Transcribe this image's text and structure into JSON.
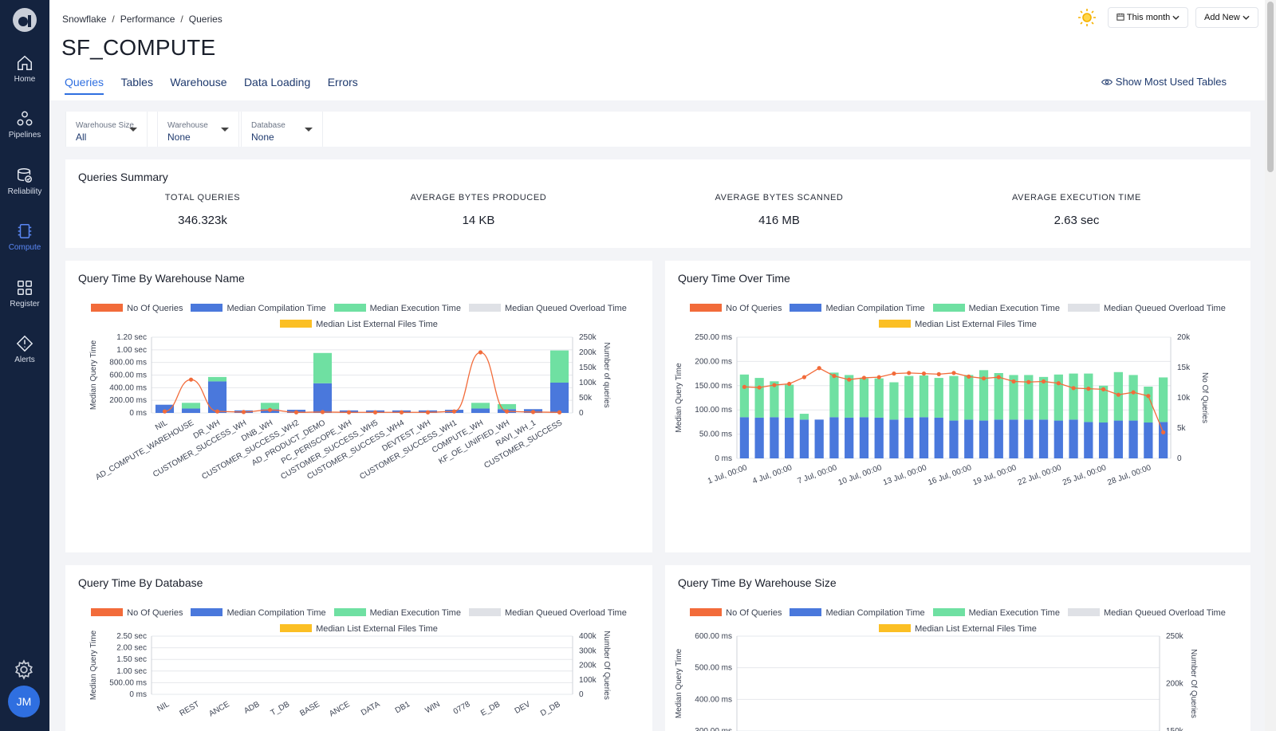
{
  "sidebar": {
    "items": [
      {
        "label": "Home",
        "icon": "home-icon"
      },
      {
        "label": "Pipelines",
        "icon": "pipelines-icon"
      },
      {
        "label": "Reliability",
        "icon": "reliability-icon"
      },
      {
        "label": "Compute",
        "icon": "compute-icon",
        "active": true
      },
      {
        "label": "Register",
        "icon": "register-icon"
      },
      {
        "label": "Alerts",
        "icon": "alerts-icon"
      }
    ],
    "avatar_initials": "JM"
  },
  "header": {
    "breadcrumb": [
      "Snowflake",
      "Performance",
      "Queries"
    ],
    "title": "SF_COMPUTE",
    "tabs": [
      "Queries",
      "Tables",
      "Warehouse",
      "Data Loading",
      "Errors"
    ],
    "active_tab": "Queries",
    "show_most_used": "Show Most Used Tables",
    "date_button": "This month",
    "add_button": "Add New"
  },
  "filters": [
    {
      "label": "Warehouse Size",
      "value": "All"
    },
    {
      "label": "Warehouse",
      "value": "None"
    },
    {
      "label": "Database",
      "value": "None"
    }
  ],
  "summary": {
    "title": "Queries Summary",
    "kpis": [
      {
        "label": "TOTAL QUERIES",
        "value": "346.323k"
      },
      {
        "label": "AVERAGE BYTES PRODUCED",
        "value": "14 KB"
      },
      {
        "label": "AVERAGE BYTES SCANNED",
        "value": "416 MB"
      },
      {
        "label": "AVERAGE EXECUTION TIME",
        "value": "2.63 sec"
      }
    ]
  },
  "colors": {
    "queries": "#f26b3a",
    "compilation": "#4a78dc",
    "execution": "#6fe0a2",
    "queued": "#dfe1e6",
    "list_external": "#fbbf24"
  },
  "legend": [
    "No Of Queries",
    "Median Compilation Time",
    "Median Execution Time",
    "Median Queued Overload Time",
    "Median List External Files Time"
  ],
  "chart_data": [
    {
      "title": "Query Time By Warehouse Name",
      "type": "bar",
      "stacked": true,
      "ylabel": "Median Query Time",
      "y2label": "Number of queries",
      "yticks": [
        "0 ms",
        "200.00 ms",
        "400.00 ms",
        "600.00 ms",
        "800.00 ms",
        "1.00 sec",
        "1.20 sec"
      ],
      "ylim": [
        0,
        1200
      ],
      "y2ticks": [
        "0",
        "50k",
        "100k",
        "150k",
        "200k",
        "250k"
      ],
      "y2lim": [
        0,
        250000
      ],
      "categories": [
        "NIL",
        "AD_COMPUTE_WAREHOUSE",
        "DR_WH",
        "CUSTOMER_SUCCESS_WH",
        "DNB_WH",
        "CUSTOMER_SUCCESS_WH2",
        "AD_PRODUCT_DEMO",
        "PC_PERISCOPE_WH",
        "CUSTOMER_SUCCESS_WH5",
        "CUSTOMER_SUCCESS_WH4",
        "DEVTEST_WH",
        "CUSTOMER_SUCCESS_WH1",
        "COMPUTE_WH",
        "KF_OE_UNIFIED_WH",
        "RAVI_WH_1",
        "CUSTOMER_SUCCESS"
      ],
      "series": [
        {
          "name": "Median Compilation Time",
          "values": [
            130,
            70,
            500,
            40,
            60,
            50,
            470,
            40,
            40,
            40,
            40,
            50,
            70,
            60,
            60,
            480
          ]
        },
        {
          "name": "Median Execution Time",
          "values": [
            0,
            90,
            70,
            0,
            100,
            0,
            480,
            0,
            0,
            0,
            0,
            0,
            90,
            80,
            0,
            510
          ]
        },
        {
          "name": "No Of Queries",
          "axis": "y2",
          "values": [
            5000,
            110000,
            5000,
            3000,
            10000,
            2000,
            3000,
            2000,
            2000,
            2000,
            2000,
            5000,
            200000,
            5000,
            3000,
            2000
          ]
        }
      ]
    },
    {
      "title": "Query Time Over Time",
      "type": "bar",
      "stacked": true,
      "ylabel": "Median Query Time",
      "y2label": "No Of Queries",
      "yticks": [
        "0 ms",
        "50.00 ms",
        "100.00 ms",
        "150.00 ms",
        "200.00 ms",
        "250.00 ms"
      ],
      "ylim": [
        0,
        250
      ],
      "y2ticks": [
        "0",
        "5k",
        "10k",
        "15k",
        "20k"
      ],
      "y2lim": [
        0,
        20000
      ],
      "xticks": [
        "1 Jul, 00:00",
        "4 Jul, 00:00",
        "7 Jul, 00:00",
        "10 Jul, 00:00",
        "13 Jul, 00:00",
        "16 Jul, 00:00",
        "19 Jul, 00:00",
        "22 Jul, 00:00",
        "25 Jul, 00:00",
        "28 Jul, 00:00"
      ],
      "x": [
        "1 Jul",
        "2 Jul",
        "3 Jul",
        "4 Jul",
        "5 Jul",
        "6 Jul",
        "7 Jul",
        "8 Jul",
        "9 Jul",
        "10 Jul",
        "11 Jul",
        "12 Jul",
        "13 Jul",
        "14 Jul",
        "15 Jul",
        "16 Jul",
        "17 Jul",
        "18 Jul",
        "19 Jul",
        "20 Jul",
        "21 Jul",
        "22 Jul",
        "23 Jul",
        "24 Jul",
        "25 Jul",
        "26 Jul",
        "27 Jul",
        "28 Jul",
        "29 Jul"
      ],
      "series": [
        {
          "name": "Median Compilation Time",
          "values": [
            85,
            84,
            85,
            84,
            80,
            80,
            85,
            84,
            85,
            84,
            80,
            84,
            85,
            84,
            78,
            80,
            78,
            80,
            80,
            80,
            80,
            78,
            80,
            75,
            74,
            78,
            78,
            74,
            75
          ]
        },
        {
          "name": "Median Execution Time",
          "values": [
            88,
            82,
            74,
            68,
            12,
            0,
            92,
            88,
            80,
            81,
            77,
            86,
            86,
            82,
            92,
            92,
            104,
            96,
            92,
            92,
            88,
            95,
            95,
            100,
            76,
            100,
            94,
            74,
            92
          ]
        },
        {
          "name": "No Of Queries",
          "axis": "y2",
          "values": [
            11800,
            11700,
            12100,
            12300,
            13400,
            14900,
            13600,
            13000,
            13300,
            13400,
            14000,
            14100,
            14000,
            13900,
            14100,
            13500,
            13200,
            13400,
            12700,
            12600,
            12700,
            12400,
            11600,
            11500,
            11400,
            10500,
            10900,
            10300,
            4300
          ]
        }
      ]
    },
    {
      "title": "Query Time By Database",
      "type": "bar",
      "stacked": true,
      "ylabel": "Median Query Time",
      "y2label": "Number Of Queries",
      "yticks": [
        "0 ms",
        "500.00 ms",
        "1.00 sec",
        "1.50 sec",
        "2.00 sec",
        "2.50 sec"
      ],
      "ylim": [
        0,
        2500
      ],
      "y2ticks": [
        "0",
        "100k",
        "200k",
        "300k",
        "400k"
      ],
      "y2lim": [
        0,
        400000
      ],
      "xticks": [
        "NIL",
        "REST",
        "ANCE",
        "ADB",
        "T_DB",
        "BASE",
        "ANCE",
        "DATA",
        "DB1",
        "WIN",
        "0778",
        "E_DB",
        "DEV",
        "D_DB"
      ]
    },
    {
      "title": "Query Time By Warehouse Size",
      "type": "bar",
      "stacked": true,
      "ylabel": "Median Query Time",
      "y2label": "Number Of Queries",
      "yticks": [
        "300.00 ms",
        "400.00 ms",
        "500.00 ms",
        "600.00 ms"
      ],
      "ylim": [
        250,
        600
      ],
      "y2ticks": [
        "150k",
        "200k",
        "250k"
      ],
      "y2lim": [
        125000,
        250000
      ]
    }
  ]
}
